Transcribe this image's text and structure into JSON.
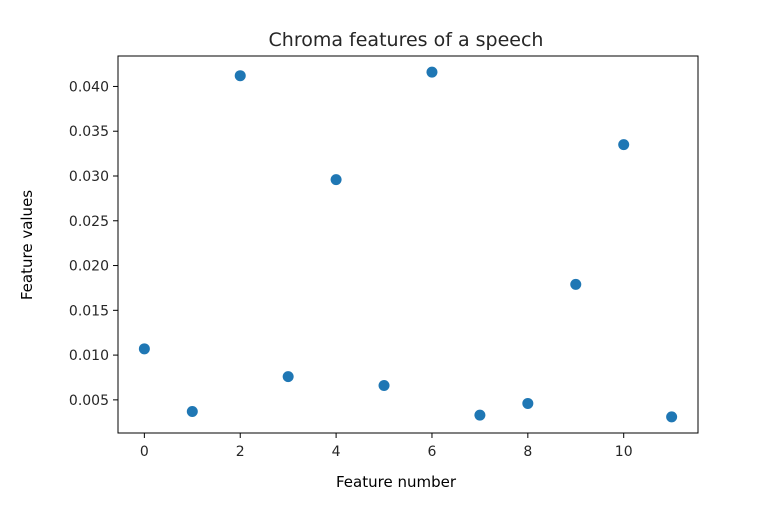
{
  "chart_data": {
    "type": "scatter",
    "title": "Chroma features of a speech",
    "xlabel": "Feature number",
    "ylabel": "Feature values",
    "x": [
      0,
      1,
      2,
      3,
      4,
      5,
      6,
      7,
      8,
      9,
      10,
      11
    ],
    "y": [
      0.0107,
      0.0037,
      0.0412,
      0.0076,
      0.0296,
      0.0066,
      0.0416,
      0.0033,
      0.0046,
      0.0179,
      0.0335,
      0.0031
    ],
    "xlim": [
      -0.55,
      11.55
    ],
    "ylim": [
      0.0013,
      0.0434
    ],
    "xticks": [
      0,
      2,
      4,
      6,
      8,
      10
    ],
    "xtick_labels": [
      "0",
      "2",
      "4",
      "6",
      "8",
      "10"
    ],
    "yticks": [
      0.005,
      0.01,
      0.015,
      0.02,
      0.025,
      0.03,
      0.035,
      0.04
    ],
    "ytick_labels": [
      "0.005",
      "0.010",
      "0.015",
      "0.020",
      "0.025",
      "0.030",
      "0.035",
      "0.040"
    ],
    "grid": false,
    "marker_color": "#1f77b4"
  }
}
